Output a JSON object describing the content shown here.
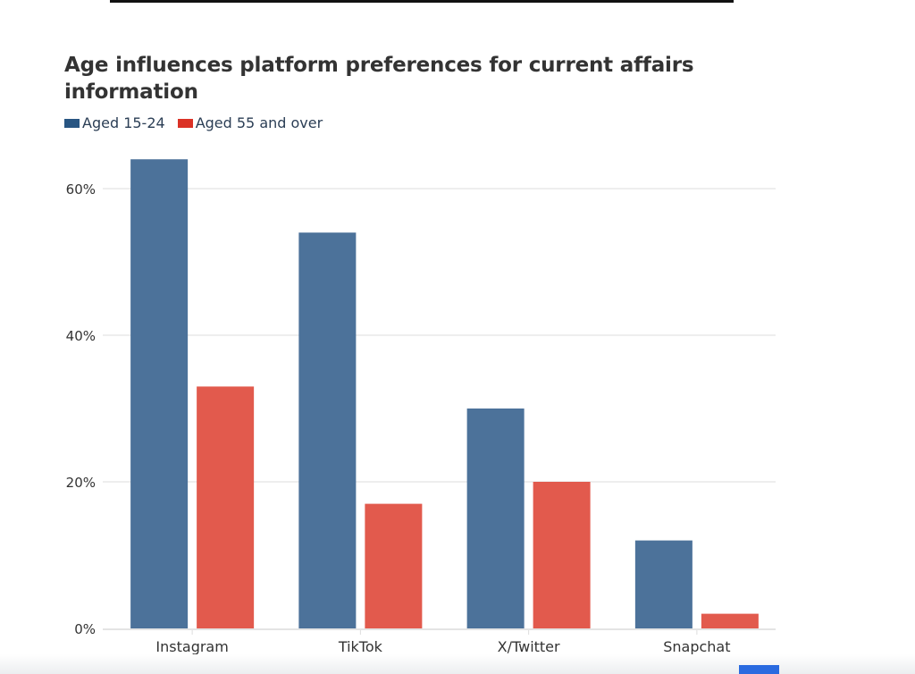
{
  "chart_data": {
    "type": "bar",
    "title": "Age influences platform preferences for current affairs information",
    "categories": [
      "Instagram",
      "TikTok",
      "X/Twitter",
      "Snapchat"
    ],
    "series": [
      {
        "name": "Aged 15-24",
        "color": "#4c729a",
        "legend_color": "#285582",
        "values": [
          64,
          54,
          30,
          12
        ]
      },
      {
        "name": "Aged 55 and over",
        "color": "#e25a4d",
        "legend_color": "#db3226",
        "values": [
          33,
          17,
          20,
          2
        ]
      }
    ],
    "yticks": [
      0,
      20,
      40,
      60
    ],
    "ytick_labels": [
      "0%",
      "20%",
      "40%",
      "60%"
    ],
    "ylim": [
      0,
      65
    ],
    "xlabel": "",
    "ylabel": "",
    "grid": true,
    "legend_position": "top-left"
  }
}
